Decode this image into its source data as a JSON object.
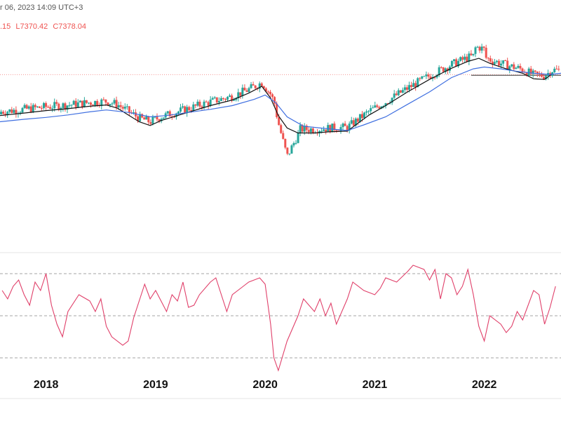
{
  "header": {
    "date_text": "r 06, 2023 14:09 UTC+3",
    "ohlc_partial": ".15",
    "low_text": "L7370.42",
    "close_text": "C7378.04"
  },
  "colors": {
    "up": "#26a69a",
    "down": "#ef5350",
    "ma_short": "#111111",
    "ma_long": "#3f6fe0",
    "rsi": "#e0406a",
    "ref_line": "#ef5350"
  },
  "chart_data": [
    {
      "type": "candlestick",
      "title": "",
      "x_unit": "year",
      "x_ticks": [
        "2018",
        "2019",
        "2020",
        "2021",
        "2022"
      ],
      "xlim": [
        2017.58,
        2022.7
      ],
      "ylim": [
        4800,
        7900
      ],
      "reference_line": 7378,
      "series": [
        {
          "kind": "ma_short",
          "values": [
            [
              2017.58,
              6720
            ],
            [
              2017.8,
              6760
            ],
            [
              2018.0,
              6800
            ],
            [
              2018.2,
              6830
            ],
            [
              2018.4,
              6870
            ],
            [
              2018.55,
              6890
            ],
            [
              2018.65,
              6840
            ],
            [
              2018.75,
              6730
            ],
            [
              2018.85,
              6620
            ],
            [
              2018.95,
              6560
            ],
            [
              2019.05,
              6640
            ],
            [
              2019.2,
              6720
            ],
            [
              2019.35,
              6800
            ],
            [
              2019.5,
              6880
            ],
            [
              2019.7,
              6970
            ],
            [
              2019.85,
              7080
            ],
            [
              2019.97,
              7190
            ],
            [
              2020.05,
              7000
            ],
            [
              2020.12,
              6720
            ],
            [
              2020.2,
              6520
            ],
            [
              2020.3,
              6440
            ],
            [
              2020.45,
              6440
            ],
            [
              2020.6,
              6460
            ],
            [
              2020.75,
              6470
            ],
            [
              2020.85,
              6600
            ],
            [
              2020.95,
              6730
            ],
            [
              2021.1,
              6880
            ],
            [
              2021.3,
              7100
            ],
            [
              2021.5,
              7300
            ],
            [
              2021.7,
              7480
            ],
            [
              2021.85,
              7590
            ],
            [
              2021.95,
              7640
            ],
            [
              2022.05,
              7560
            ],
            [
              2022.2,
              7470
            ],
            [
              2022.35,
              7400
            ],
            [
              2022.45,
              7310
            ],
            [
              2022.55,
              7300
            ],
            [
              2022.62,
              7390
            ]
          ]
        },
        {
          "kind": "ma_long",
          "values": [
            [
              2017.58,
              6620
            ],
            [
              2017.8,
              6660
            ],
            [
              2018.0,
              6690
            ],
            [
              2018.2,
              6730
            ],
            [
              2018.4,
              6780
            ],
            [
              2018.55,
              6810
            ],
            [
              2018.75,
              6770
            ],
            [
              2018.95,
              6700
            ],
            [
              2019.1,
              6720
            ],
            [
              2019.3,
              6770
            ],
            [
              2019.5,
              6820
            ],
            [
              2019.7,
              6880
            ],
            [
              2019.9,
              6980
            ],
            [
              2020.0,
              7050
            ],
            [
              2020.1,
              6920
            ],
            [
              2020.2,
              6700
            ],
            [
              2020.35,
              6550
            ],
            [
              2020.5,
              6520
            ],
            [
              2020.75,
              6480
            ],
            [
              2020.9,
              6570
            ],
            [
              2021.1,
              6700
            ],
            [
              2021.3,
              6900
            ],
            [
              2021.5,
              7100
            ],
            [
              2021.7,
              7330
            ],
            [
              2021.9,
              7470
            ],
            [
              2022.0,
              7500
            ],
            [
              2022.15,
              7470
            ],
            [
              2022.3,
              7430
            ],
            [
              2022.45,
              7400
            ],
            [
              2022.6,
              7380
            ],
            [
              2022.7,
              7400
            ]
          ]
        }
      ]
    },
    {
      "type": "line",
      "title": "",
      "xlim": [
        2017.58,
        2022.7
      ],
      "ylim": [
        20,
        80
      ],
      "levels": [
        70,
        50,
        30
      ],
      "series": [
        {
          "name": "",
          "values": [
            [
              2017.6,
              62
            ],
            [
              2017.65,
              58
            ],
            [
              2017.7,
              64
            ],
            [
              2017.75,
              67
            ],
            [
              2017.8,
              60
            ],
            [
              2017.85,
              55
            ],
            [
              2017.9,
              66
            ],
            [
              2017.95,
              62
            ],
            [
              2018.0,
              70
            ],
            [
              2018.05,
              55
            ],
            [
              2018.1,
              46
            ],
            [
              2018.15,
              40
            ],
            [
              2018.2,
              52
            ],
            [
              2018.3,
              60
            ],
            [
              2018.4,
              57
            ],
            [
              2018.45,
              52
            ],
            [
              2018.5,
              58
            ],
            [
              2018.55,
              45
            ],
            [
              2018.6,
              40
            ],
            [
              2018.7,
              36
            ],
            [
              2018.75,
              38
            ],
            [
              2018.8,
              49
            ],
            [
              2018.9,
              65
            ],
            [
              2018.95,
              58
            ],
            [
              2019.0,
              62
            ],
            [
              2019.1,
              52
            ],
            [
              2019.15,
              60
            ],
            [
              2019.2,
              57
            ],
            [
              2019.25,
              66
            ],
            [
              2019.3,
              54
            ],
            [
              2019.35,
              55
            ],
            [
              2019.4,
              60
            ],
            [
              2019.5,
              66
            ],
            [
              2019.55,
              68
            ],
            [
              2019.65,
              52
            ],
            [
              2019.7,
              60
            ],
            [
              2019.8,
              64
            ],
            [
              2019.85,
              66
            ],
            [
              2019.95,
              68
            ],
            [
              2020.0,
              65
            ],
            [
              2020.05,
              46
            ],
            [
              2020.08,
              30
            ],
            [
              2020.12,
              24
            ],
            [
              2020.2,
              38
            ],
            [
              2020.3,
              50
            ],
            [
              2020.35,
              58
            ],
            [
              2020.45,
              52
            ],
            [
              2020.5,
              58
            ],
            [
              2020.55,
              50
            ],
            [
              2020.6,
              56
            ],
            [
              2020.65,
              46
            ],
            [
              2020.75,
              58
            ],
            [
              2020.8,
              66
            ],
            [
              2020.9,
              62
            ],
            [
              2021.0,
              60
            ],
            [
              2021.05,
              63
            ],
            [
              2021.1,
              68
            ],
            [
              2021.2,
              66
            ],
            [
              2021.3,
              71
            ],
            [
              2021.35,
              74
            ],
            [
              2021.45,
              72
            ],
            [
              2021.5,
              67
            ],
            [
              2021.55,
              72
            ],
            [
              2021.6,
              58
            ],
            [
              2021.65,
              70
            ],
            [
              2021.7,
              68
            ],
            [
              2021.75,
              60
            ],
            [
              2021.8,
              64
            ],
            [
              2021.85,
              72
            ],
            [
              2021.9,
              60
            ],
            [
              2021.95,
              45
            ],
            [
              2022.0,
              38
            ],
            [
              2022.05,
              50
            ],
            [
              2022.15,
              46
            ],
            [
              2022.2,
              42
            ],
            [
              2022.25,
              45
            ],
            [
              2022.3,
              52
            ],
            [
              2022.35,
              48
            ],
            [
              2022.45,
              62
            ],
            [
              2022.5,
              60
            ],
            [
              2022.55,
              46
            ],
            [
              2022.6,
              54
            ],
            [
              2022.65,
              64
            ]
          ]
        }
      ]
    }
  ]
}
